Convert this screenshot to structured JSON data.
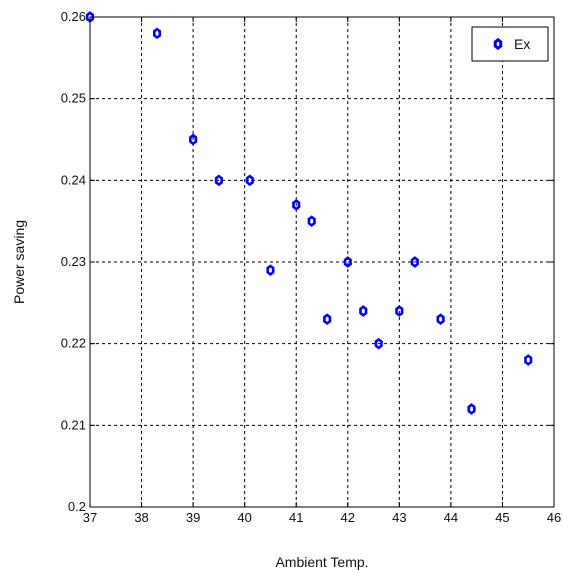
{
  "chart_data": {
    "type": "scatter",
    "title": "",
    "xlabel": "Ambient Temp.",
    "ylabel": "Power saving",
    "xlim": [
      37,
      46
    ],
    "ylim": [
      0.2,
      0.26
    ],
    "x_ticks": [
      "37",
      "38",
      "39",
      "40",
      "41",
      "42",
      "43",
      "44",
      "45",
      "46"
    ],
    "y_ticks": [
      "0.2",
      "0.21",
      "0.22",
      "0.23",
      "0.24",
      "0.25",
      "0.26"
    ],
    "grid": true,
    "legend": {
      "position": "top-right",
      "entries": [
        "Ex"
      ]
    },
    "series": [
      {
        "name": "Ex",
        "color": "#0000ff",
        "marker": "hollow-hexagon",
        "points": [
          {
            "x": 37.0,
            "y": 0.26
          },
          {
            "x": 38.3,
            "y": 0.258
          },
          {
            "x": 39.0,
            "y": 0.245
          },
          {
            "x": 39.5,
            "y": 0.24
          },
          {
            "x": 40.1,
            "y": 0.24
          },
          {
            "x": 40.5,
            "y": 0.229
          },
          {
            "x": 41.0,
            "y": 0.237
          },
          {
            "x": 41.3,
            "y": 0.235
          },
          {
            "x": 41.6,
            "y": 0.223
          },
          {
            "x": 42.0,
            "y": 0.23
          },
          {
            "x": 42.3,
            "y": 0.224
          },
          {
            "x": 42.6,
            "y": 0.22
          },
          {
            "x": 43.0,
            "y": 0.224
          },
          {
            "x": 43.3,
            "y": 0.23
          },
          {
            "x": 43.8,
            "y": 0.223
          },
          {
            "x": 44.4,
            "y": 0.212
          },
          {
            "x": 45.5,
            "y": 0.218
          }
        ]
      }
    ]
  }
}
